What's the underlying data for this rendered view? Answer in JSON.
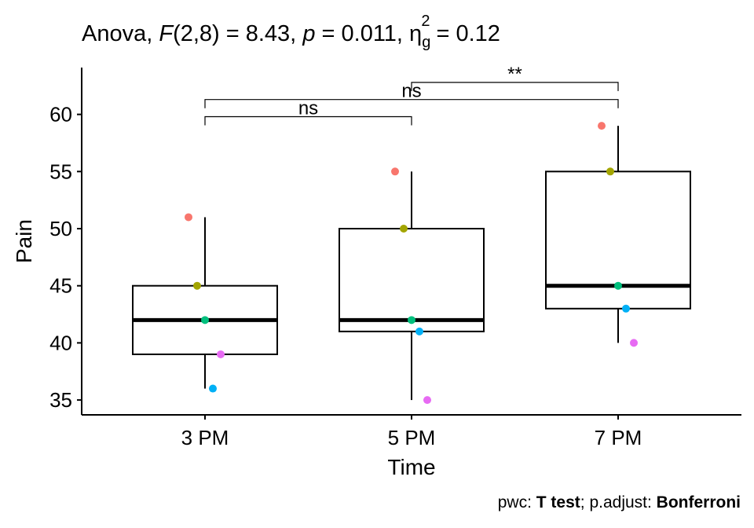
{
  "chart_data": {
    "type": "boxplot",
    "title": {
      "prefix": "Anova, ",
      "F_symbol": "F",
      "F_args": "(2,8) = 8.43, ",
      "p_symbol": "p",
      "p_value": " = 0.011, ",
      "eta_symbol": "η",
      "eta_sub": "g",
      "eta_sup": "2",
      "eta_value": " = 0.12"
    },
    "xlabel": "Time",
    "ylabel": "Pain",
    "categories": [
      "3 PM",
      "5 PM",
      "7 PM"
    ],
    "yticks": [
      35,
      40,
      45,
      50,
      55,
      60
    ],
    "ylim": [
      33.7,
      64.1
    ],
    "boxes": [
      {
        "category": "3 PM",
        "whisker_low": 36,
        "q1": 39,
        "median": 42,
        "q3": 45,
        "whisker_high": 51
      },
      {
        "category": "5 PM",
        "whisker_low": 35,
        "q1": 41,
        "median": 42,
        "q3": 50,
        "whisker_high": 55
      },
      {
        "category": "7 PM",
        "whisker_low": 40,
        "q1": 43,
        "median": 45,
        "q3": 55,
        "whisker_high": 59
      }
    ],
    "subject_colors": [
      "#F8766D",
      "#A3A500",
      "#00BF7D",
      "#00B0F6",
      "#E76BF3"
    ],
    "points": [
      {
        "category": "3 PM",
        "values": [
          51,
          45,
          42,
          36,
          39
        ]
      },
      {
        "category": "5 PM",
        "values": [
          55,
          50,
          42,
          41,
          35
        ]
      },
      {
        "category": "7 PM",
        "values": [
          59,
          55,
          45,
          43,
          40
        ]
      }
    ],
    "comparisons": [
      {
        "from": "3 PM",
        "to": "5 PM",
        "label": "ns",
        "y": 59.8
      },
      {
        "from": "3 PM",
        "to": "7 PM",
        "label": "ns",
        "y": 61.3
      },
      {
        "from": "5 PM",
        "to": "7 PM",
        "label": "**",
        "y": 62.8
      }
    ],
    "caption": {
      "pwc_label": "pwc: ",
      "pwc_value": "T test",
      "sep": "; p.adjust: ",
      "adjust_value": "Bonferroni"
    }
  }
}
